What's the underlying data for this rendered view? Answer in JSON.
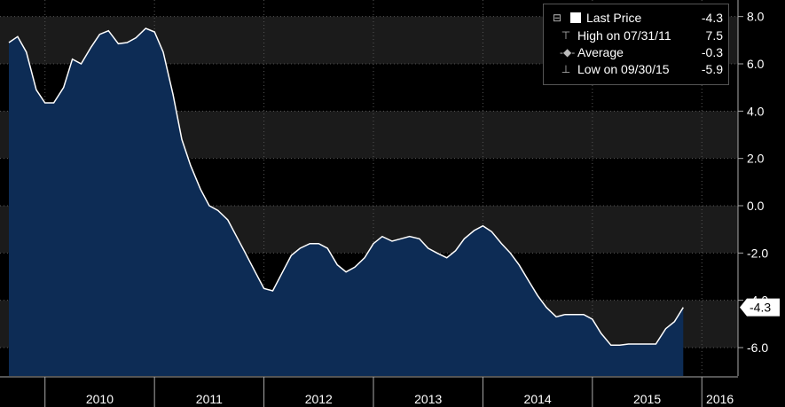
{
  "chart_data": {
    "type": "area",
    "x_years": [
      "2010",
      "2011",
      "2012",
      "2013",
      "2014",
      "2015",
      "2016"
    ],
    "y_ticks": [
      8.0,
      6.0,
      4.0,
      2.0,
      0.0,
      -2.0,
      -4.0,
      -6.0
    ],
    "y_tick_labels": [
      "8.0",
      "6.0",
      "4.0",
      "2.0",
      "0.0",
      "-2.0",
      "-4.0",
      "-6.0"
    ],
    "ylim": [
      -7.2,
      8.7
    ],
    "x_range": [
      2009.67,
      2016.33
    ],
    "grid": true,
    "series": [
      {
        "color": "#ffffff",
        "fill": "#0d2c55",
        "points": [
          [
            2009.67,
            6.9
          ],
          [
            2009.75,
            7.15
          ],
          [
            2009.83,
            6.5
          ],
          [
            2009.92,
            4.9
          ],
          [
            2010.0,
            4.35
          ],
          [
            2010.08,
            4.35
          ],
          [
            2010.17,
            5.0
          ],
          [
            2010.25,
            6.2
          ],
          [
            2010.33,
            6.0
          ],
          [
            2010.42,
            6.7
          ],
          [
            2010.5,
            7.25
          ],
          [
            2010.58,
            7.4
          ],
          [
            2010.67,
            6.85
          ],
          [
            2010.75,
            6.9
          ],
          [
            2010.83,
            7.1
          ],
          [
            2010.92,
            7.5
          ],
          [
            2011.0,
            7.35
          ],
          [
            2011.08,
            6.5
          ],
          [
            2011.17,
            4.7
          ],
          [
            2011.25,
            2.8
          ],
          [
            2011.33,
            1.7
          ],
          [
            2011.42,
            0.7
          ],
          [
            2011.5,
            0.0
          ],
          [
            2011.58,
            -0.2
          ],
          [
            2011.67,
            -0.6
          ],
          [
            2011.75,
            -1.3
          ],
          [
            2011.83,
            -2.0
          ],
          [
            2011.92,
            -2.8
          ],
          [
            2012.0,
            -3.5
          ],
          [
            2012.08,
            -3.6
          ],
          [
            2012.17,
            -2.8
          ],
          [
            2012.25,
            -2.1
          ],
          [
            2012.33,
            -1.8
          ],
          [
            2012.42,
            -1.6
          ],
          [
            2012.5,
            -1.6
          ],
          [
            2012.58,
            -1.8
          ],
          [
            2012.67,
            -2.5
          ],
          [
            2012.75,
            -2.8
          ],
          [
            2012.83,
            -2.6
          ],
          [
            2012.92,
            -2.2
          ],
          [
            2013.0,
            -1.6
          ],
          [
            2013.08,
            -1.3
          ],
          [
            2013.17,
            -1.5
          ],
          [
            2013.25,
            -1.4
          ],
          [
            2013.33,
            -1.3
          ],
          [
            2013.42,
            -1.4
          ],
          [
            2013.5,
            -1.8
          ],
          [
            2013.58,
            -2.0
          ],
          [
            2013.67,
            -2.2
          ],
          [
            2013.75,
            -1.9
          ],
          [
            2013.83,
            -1.4
          ],
          [
            2013.92,
            -1.05
          ],
          [
            2014.0,
            -0.85
          ],
          [
            2014.08,
            -1.1
          ],
          [
            2014.17,
            -1.6
          ],
          [
            2014.25,
            -2.0
          ],
          [
            2014.33,
            -2.5
          ],
          [
            2014.42,
            -3.2
          ],
          [
            2014.5,
            -3.8
          ],
          [
            2014.58,
            -4.3
          ],
          [
            2014.67,
            -4.7
          ],
          [
            2014.75,
            -4.6
          ],
          [
            2014.83,
            -4.6
          ],
          [
            2014.92,
            -4.6
          ],
          [
            2015.0,
            -4.8
          ],
          [
            2015.08,
            -5.4
          ],
          [
            2015.17,
            -5.9
          ],
          [
            2015.25,
            -5.9
          ],
          [
            2015.33,
            -5.85
          ],
          [
            2015.42,
            -5.85
          ],
          [
            2015.5,
            -5.85
          ],
          [
            2015.58,
            -5.85
          ],
          [
            2015.67,
            -5.2
          ],
          [
            2015.75,
            -4.9
          ],
          [
            2015.83,
            -4.3
          ]
        ]
      }
    ],
    "last_price_tag": "-4.3",
    "legend": [
      {
        "icon": "last-price-icon",
        "label": "Last Price",
        "value": "-4.3"
      },
      {
        "icon": "high-marker-icon",
        "label": "High on 07/31/11",
        "value": "7.5"
      },
      {
        "icon": "average-marker-icon",
        "label": "Average",
        "value": "-0.3"
      },
      {
        "icon": "low-marker-icon",
        "label": "Low on 09/30/15",
        "value": "-5.9"
      }
    ]
  },
  "colors": {
    "background": "#000000",
    "plot_band_dark": "#000000",
    "plot_band_light": "#1b1b1b",
    "area_fill": "#0d2c55",
    "line": "#ffffff",
    "grid": "#555555",
    "text": "#ffffff"
  }
}
